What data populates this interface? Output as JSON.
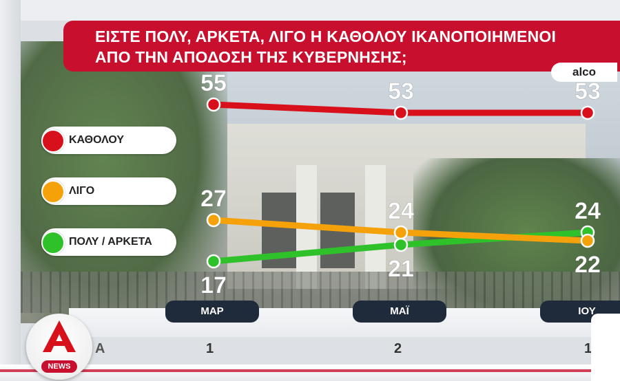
{
  "title": {
    "line1": "ΕΙΣΤΕ ΠΟΛΥ, ΑΡΚΕΤΑ, ΛΙΓΟ Η ΚΑΘΟΛΟΥ ΙΚΑΝΟΠΟΙΗΜΕΝΟΙ",
    "line2": "ΑΠΟ ΤΗΝ ΑΠΟΔΟΣΗ ΤΗΣ ΚΥΒΕΡΝΗΣΗΣ;"
  },
  "source": "alco",
  "legend": [
    {
      "label": "ΚΑΘΟΛΟΥ",
      "color": "#d8101c"
    },
    {
      "label": "ΛΙΓΟ",
      "color": "#f5a20a"
    },
    {
      "label": "ΠΟΛΥ / ΑΡΚΕΤΑ",
      "color": "#2fc12a"
    }
  ],
  "bottom_numbers": [
    "1",
    "2",
    "1"
  ],
  "bottom_side_text": "A",
  "logo": {
    "news_text": "NEWS",
    "icon": "alpha-logo-icon"
  },
  "chart_data": {
    "type": "line",
    "title": "ΕΙΣΤΕ ΠΟΛΥ, ΑΡΚΕΤΑ, ΛΙΓΟ Η ΚΑΘΟΛΟΥ ΙΚΑΝΟΠΟΙΗΜΕΝΟΙ ΑΠΟ ΤΗΝ ΑΠΟΔΟΣΗ ΤΗΣ ΚΥΒΕΡΝΗΣΗΣ;",
    "categories": [
      "ΜΑΡ",
      "ΜΑΪ",
      "ΙΟΥ"
    ],
    "series": [
      {
        "name": "ΚΑΘΟΛΟΥ",
        "values": [
          55,
          53,
          53
        ],
        "color": "#d8101c"
      },
      {
        "name": "ΛΙΓΟ",
        "values": [
          27,
          24,
          22
        ],
        "color": "#f5a20a"
      },
      {
        "name": "ΠΟΛΥ / ΑΡΚΕΤΑ",
        "values": [
          17,
          21,
          24
        ],
        "color": "#2fc12a"
      }
    ],
    "xlabel": "",
    "ylabel": "",
    "ylim": [
      10,
      60
    ],
    "legend": "left",
    "grid": false
  }
}
